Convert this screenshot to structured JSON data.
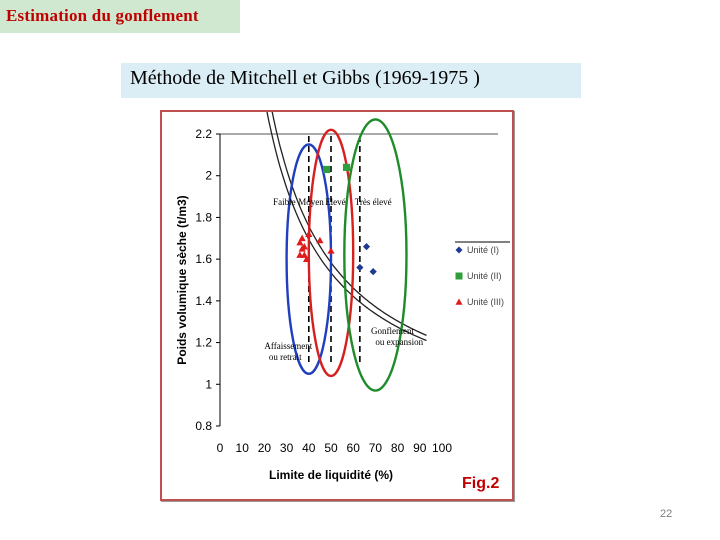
{
  "slide": {
    "header": "Estimation du gonflement",
    "subtitle": "Méthode de Mitchell et Gibbs (1969-1975 )",
    "page_number": "22",
    "fig_label": "Fig.2"
  },
  "colors": {
    "header_bg": "#cfe8cf",
    "header_text": "#c00000",
    "subtitle_bg": "#dbeef6",
    "frame_border": "#c0504d",
    "faible": "#1f3fbf",
    "moyen": "#d62020",
    "eleve": "#1e8c2a"
  },
  "chart_data": {
    "type": "scatter",
    "title": "",
    "xlabel": "Limite de liquidité (%)",
    "ylabel": "Poids volumique sèche (t/m3)",
    "xlim": [
      0,
      100
    ],
    "ylim": [
      0.8,
      2.2
    ],
    "xticks": [
      "0",
      "10",
      "20",
      "30",
      "40",
      "50",
      "60",
      "70",
      "80",
      "90",
      "100"
    ],
    "yticks": [
      "0.8",
      "1",
      "1.2",
      "1.4",
      "1.6",
      "1.8",
      "2",
      "2.2"
    ],
    "category_labels": [
      "Faible",
      "Moyen",
      "Elevé",
      "Très élevé"
    ],
    "annotations": [
      "Affaissement ou retrait",
      "Gonflement ou expansion"
    ],
    "legend_placement": "right",
    "series": [
      {
        "name": "Unité (I)",
        "marker": "diamond",
        "color": "#1f3a93",
        "points": [
          [
            66,
            1.66
          ],
          [
            63,
            1.56
          ],
          [
            69,
            1.54
          ]
        ]
      },
      {
        "name": "Unité (II)",
        "marker": "square",
        "color": "#2e9e3a",
        "points": [
          [
            48,
            2.03
          ],
          [
            57,
            2.04
          ]
        ]
      },
      {
        "name": "Unité (III)",
        "marker": "triangle",
        "color": "#e01b1b",
        "points": [
          [
            36,
            1.68
          ],
          [
            37,
            1.65
          ],
          [
            38,
            1.62
          ],
          [
            36,
            1.62
          ],
          [
            37,
            1.7
          ],
          [
            39,
            1.6
          ],
          [
            38,
            1.66
          ],
          [
            40,
            1.72
          ],
          [
            45,
            1.69
          ],
          [
            50,
            1.64
          ]
        ]
      }
    ]
  }
}
